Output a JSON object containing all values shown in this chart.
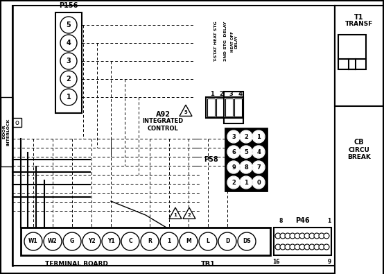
{
  "bg_color": "#ffffff",
  "fig_width": 5.54,
  "fig_height": 3.95,
  "dpi": 100,
  "p156_pins": [
    "5",
    "4",
    "3",
    "2",
    "1"
  ],
  "a92_label": "A92",
  "a92_sub": "INTEGRATED\nCONTROL",
  "relay_labels": [
    "T-STAT HEAT STG",
    "2ND STG  DELAY",
    "HEAT OFF\nDELAY"
  ],
  "relay_nums": [
    "1",
    "2",
    "3",
    "4"
  ],
  "p58_label": "P58",
  "p58_pins": [
    [
      "3",
      "2",
      "1"
    ],
    [
      "6",
      "5",
      "4"
    ],
    [
      "9",
      "8",
      "7"
    ],
    [
      "2",
      "1",
      "0"
    ]
  ],
  "terminal_labels": [
    "W1",
    "W2",
    "G",
    "Y2",
    "Y1",
    "C",
    "R",
    "1",
    "M",
    "L",
    "D",
    "DS"
  ],
  "terminal_board_label": "TERMINAL BOARD",
  "tb1_label": "TB1",
  "p46_label": "P46",
  "t1_label": "T1\nTRANSF",
  "cb_label": "CB\nCIRCU\nBREAK",
  "door_label": "DOOR\nINTERLOCK"
}
